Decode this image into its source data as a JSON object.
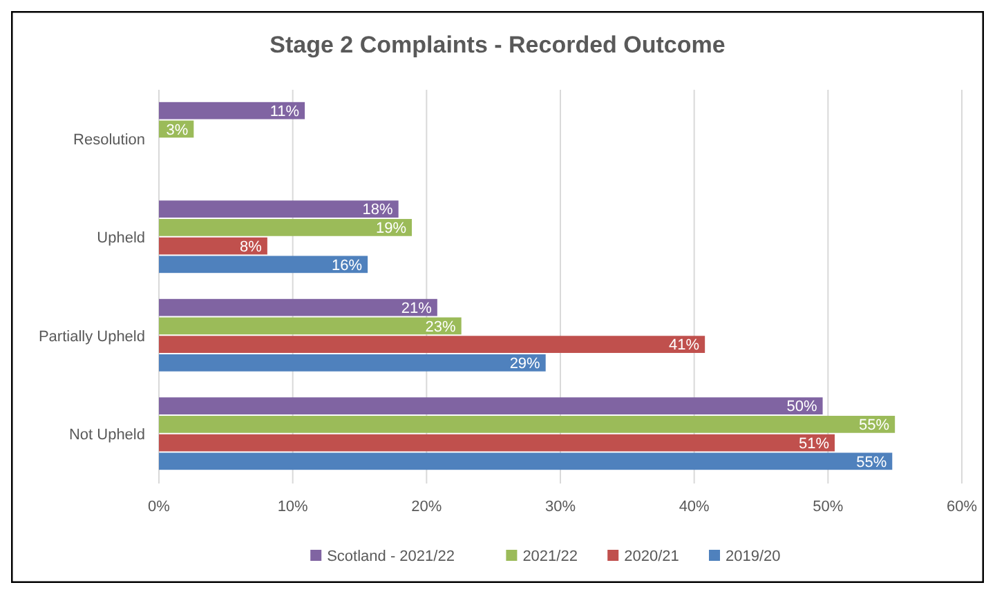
{
  "chart_data": {
    "type": "bar",
    "orientation": "horizontal",
    "title": "Stage 2 Complaints - Recorded Outcome",
    "categories": [
      "Resolution",
      "Upheld",
      "Partially Upheld",
      "Not Upheld"
    ],
    "series": [
      {
        "name": "Scotland - 2021/22",
        "color": "#8064a2",
        "values": [
          10.9,
          17.9,
          20.8,
          49.6
        ],
        "value_labels": [
          "11%",
          "18%",
          "21%",
          "50%"
        ]
      },
      {
        "name": "2021/22",
        "color": "#9bbb59",
        "values": [
          2.6,
          18.9,
          22.6,
          55.0
        ],
        "value_labels": [
          "3%",
          "19%",
          "23%",
          "55%"
        ]
      },
      {
        "name": "2020/21",
        "color": "#c0504d",
        "values": [
          null,
          8.1,
          40.8,
          50.5
        ],
        "value_labels": [
          null,
          "8%",
          "41%",
          "51%"
        ]
      },
      {
        "name": "2019/20",
        "color": "#4f81bd",
        "values": [
          null,
          15.6,
          28.9,
          54.8
        ],
        "value_labels": [
          null,
          "16%",
          "29%",
          "55%"
        ]
      }
    ],
    "xlim": [
      0,
      60
    ],
    "xticks": [
      {
        "value": 0,
        "label": "0%"
      },
      {
        "value": 10,
        "label": "10%"
      },
      {
        "value": 20,
        "label": "20%"
      },
      {
        "value": 30,
        "label": "30%"
      },
      {
        "value": 40,
        "label": "40%"
      },
      {
        "value": 50,
        "label": "50%"
      },
      {
        "value": 60,
        "label": "60%"
      }
    ],
    "grid": "x",
    "legend": "bottom"
  }
}
